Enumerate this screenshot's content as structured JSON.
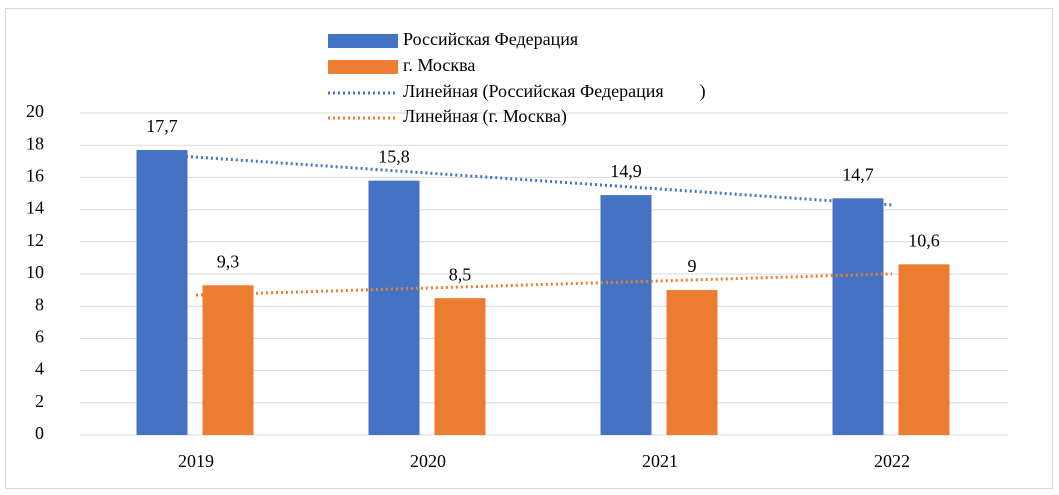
{
  "chart_data": {
    "type": "bar",
    "categories": [
      "2019",
      "2020",
      "2021",
      "2022"
    ],
    "series": [
      {
        "name": "Российская Федерация",
        "color": "#4472c4",
        "values": [
          17.7,
          15.8,
          14.9,
          14.7
        ],
        "value_labels": [
          "17,7",
          "15,8",
          "14,9",
          "14,7"
        ],
        "trendline": {
          "type": "linear",
          "name": "Линейная (Российская Федерация        )",
          "color": "#4472c4"
        }
      },
      {
        "name": "г. Москва",
        "color": "#ed7d31",
        "values": [
          9.3,
          8.5,
          9,
          10.6
        ],
        "value_labels": [
          "9,3",
          "8,5",
          "9",
          "10,6"
        ],
        "trendline": {
          "type": "linear",
          "name": "Линейная (г. Москва)",
          "color": "#ed7d31"
        }
      }
    ],
    "ylim": [
      0,
      20
    ],
    "yticks": [
      0,
      2,
      4,
      6,
      8,
      10,
      12,
      14,
      16,
      18,
      20
    ],
    "grid": true,
    "legend": "top"
  }
}
